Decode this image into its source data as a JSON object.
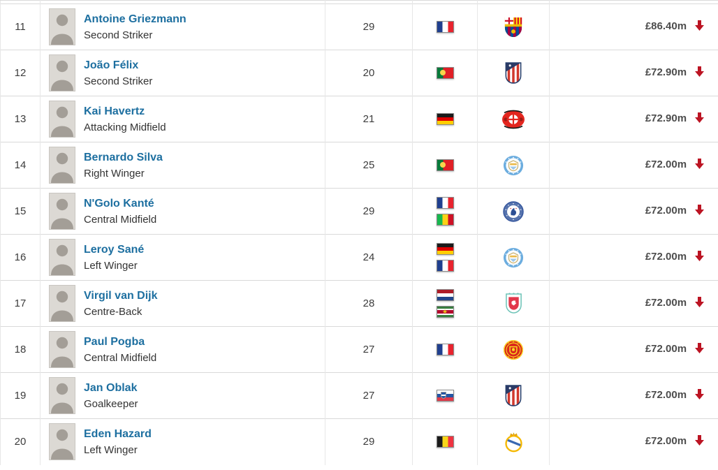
{
  "colors": {
    "player_link_blue": "#1d6fa0",
    "value_text_gray": "#4d4d4d",
    "trend_down_red": "#bc1423",
    "row_border_gray": "#d9d9d9"
  },
  "table": {
    "players": [
      {
        "rank": "11",
        "name": "Antoine Griezmann",
        "position": "Second Striker",
        "age": "29",
        "nationalities": [
          "france"
        ],
        "club_crest": "fc-barcelona",
        "value": "£86.40m",
        "trend": "down"
      },
      {
        "rank": "12",
        "name": "João Félix",
        "position": "Second Striker",
        "age": "20",
        "nationalities": [
          "portugal"
        ],
        "club_crest": "atletico-madrid",
        "value": "£72.90m",
        "trend": "down"
      },
      {
        "rank": "13",
        "name": "Kai Havertz",
        "position": "Attacking Midfield",
        "age": "21",
        "nationalities": [
          "germany"
        ],
        "club_crest": "bayer-leverkusen",
        "value": "£72.90m",
        "trend": "down"
      },
      {
        "rank": "14",
        "name": "Bernardo Silva",
        "position": "Right Winger",
        "age": "25",
        "nationalities": [
          "portugal"
        ],
        "club_crest": "manchester-city",
        "value": "£72.00m",
        "trend": "down"
      },
      {
        "rank": "15",
        "name": "N'Golo Kanté",
        "position": "Central Midfield",
        "age": "29",
        "nationalities": [
          "france",
          "mali"
        ],
        "club_crest": "chelsea",
        "value": "£72.00m",
        "trend": "down"
      },
      {
        "rank": "16",
        "name": "Leroy Sané",
        "position": "Left Winger",
        "age": "24",
        "nationalities": [
          "germany",
          "france"
        ],
        "club_crest": "manchester-city",
        "value": "£72.00m",
        "trend": "down"
      },
      {
        "rank": "17",
        "name": "Virgil van Dijk",
        "position": "Centre-Back",
        "age": "28",
        "nationalities": [
          "netherlands",
          "suriname"
        ],
        "club_crest": "liverpool",
        "value": "£72.00m",
        "trend": "down"
      },
      {
        "rank": "18",
        "name": "Paul Pogba",
        "position": "Central Midfield",
        "age": "27",
        "nationalities": [
          "france"
        ],
        "club_crest": "manchester-united",
        "value": "£72.00m",
        "trend": "down"
      },
      {
        "rank": "19",
        "name": "Jan Oblak",
        "position": "Goalkeeper",
        "age": "27",
        "nationalities": [
          "slovenia"
        ],
        "club_crest": "atletico-madrid",
        "value": "£72.00m",
        "trend": "down"
      },
      {
        "rank": "20",
        "name": "Eden Hazard",
        "position": "Left Winger",
        "age": "29",
        "nationalities": [
          "belgium"
        ],
        "club_crest": "real-madrid",
        "value": "£72.00m",
        "trend": "down"
      }
    ]
  }
}
